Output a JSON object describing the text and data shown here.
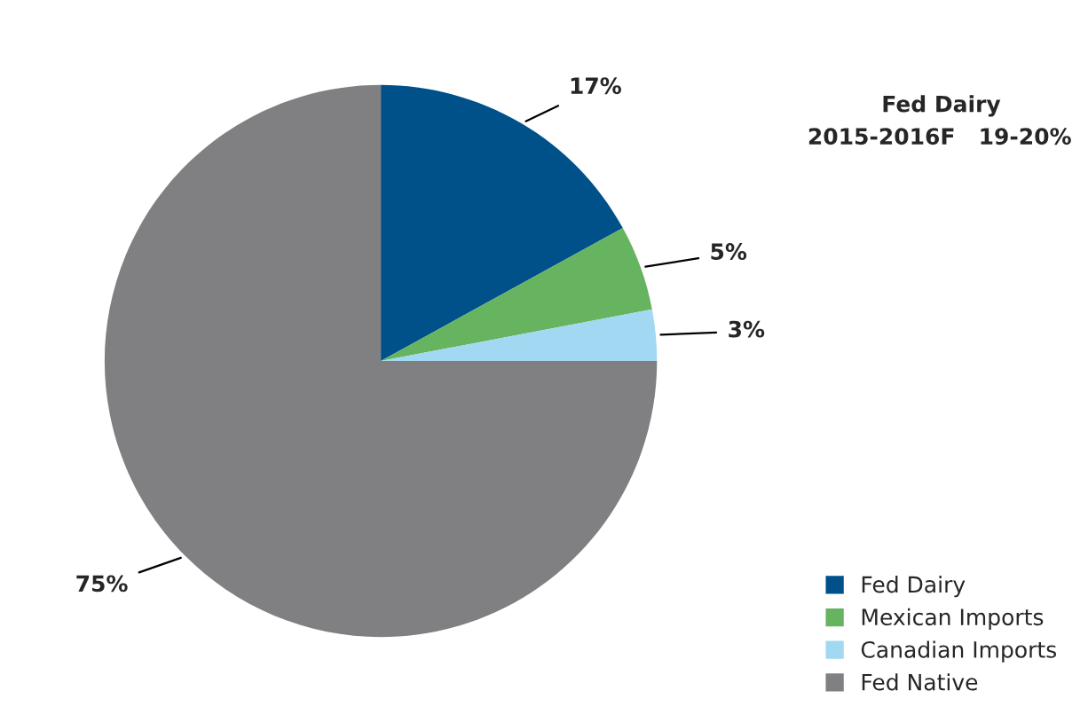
{
  "chart_data": {
    "type": "pie",
    "title": "Fed Dairy",
    "subtitle": "2015-2016F   19-20%",
    "categories": [
      "Fed Dairy",
      "Mexican Imports",
      "Canadian Imports",
      "Fed Native"
    ],
    "values": [
      17,
      5,
      3,
      75
    ],
    "colors": [
      "#00508a",
      "#66b360",
      "#a3d8f2",
      "#808083"
    ],
    "value_labels": [
      "17%",
      "5%",
      "3%",
      "75%"
    ],
    "legend": "bottom right"
  }
}
